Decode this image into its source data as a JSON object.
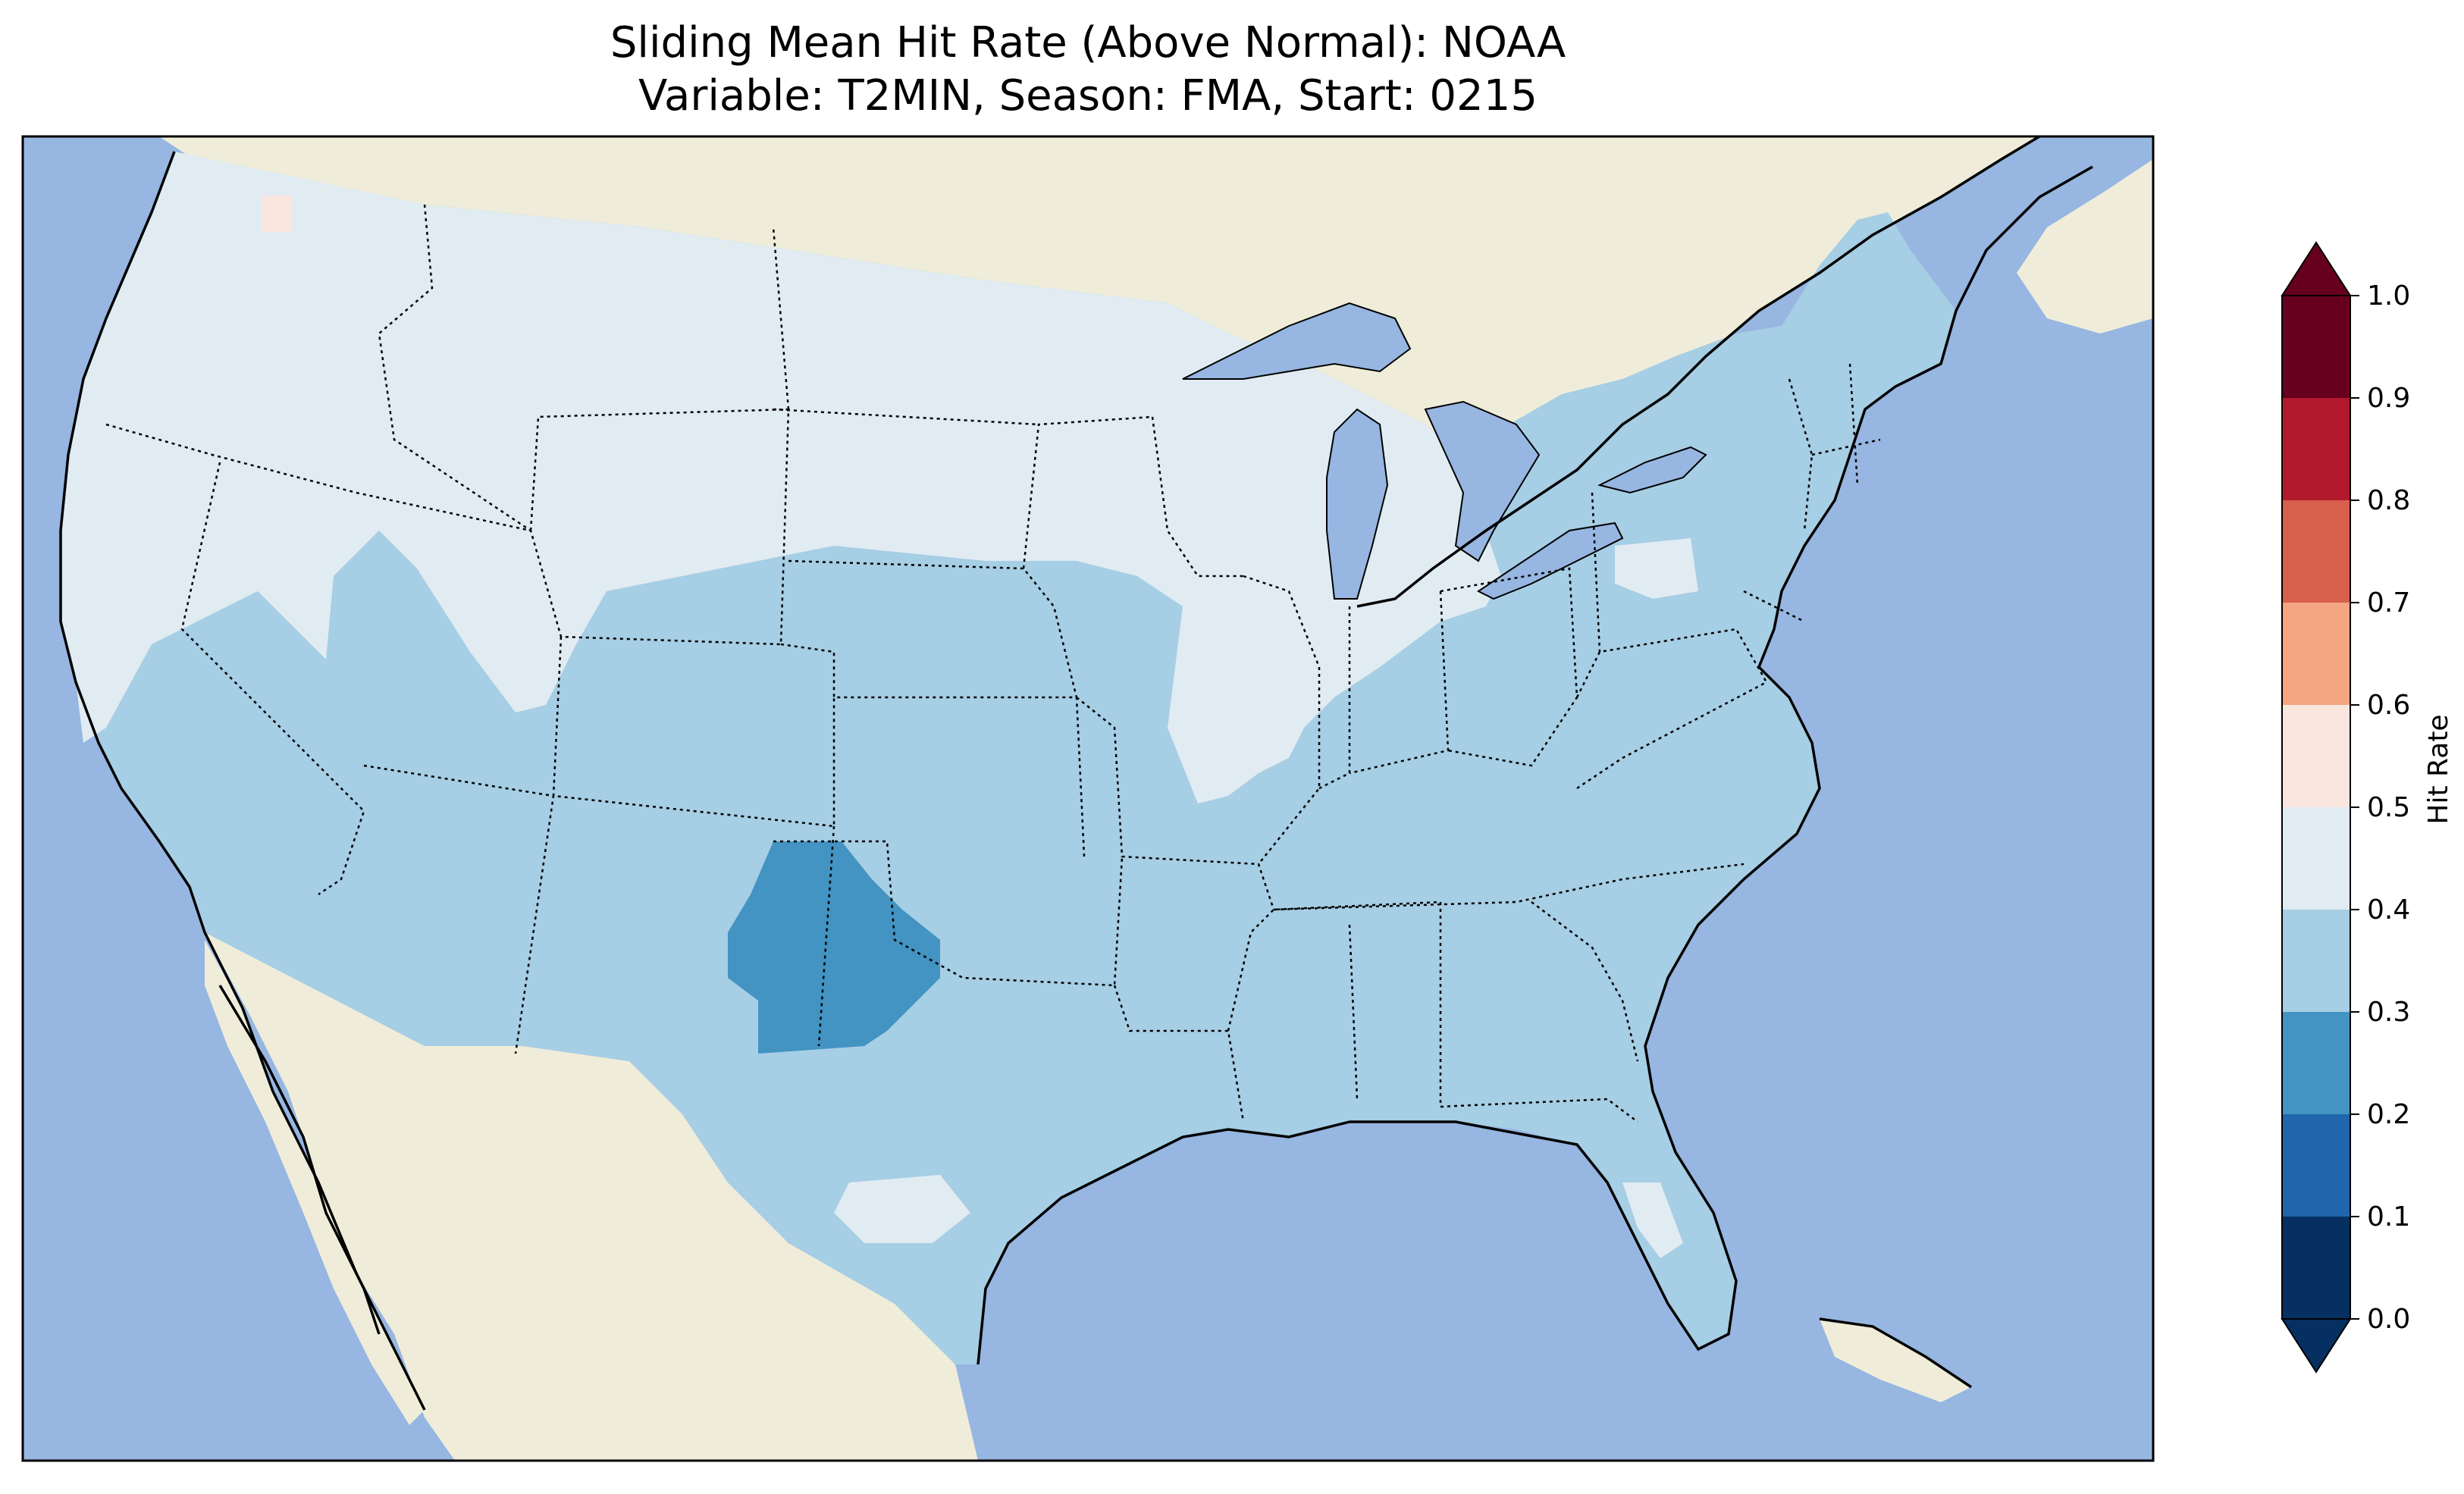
{
  "title": {
    "line1": "Sliding Mean Hit Rate (Above Normal): NOAA",
    "line2": "Variable: T2MIN, Season: FMA, Start: 0215"
  },
  "colors": {
    "ocean": "#97b6e1",
    "land": "#efedda",
    "outline": "#000000"
  },
  "colorbar": {
    "label": "Hit Rate",
    "ticks": [
      "0.0",
      "0.1",
      "0.2",
      "0.3",
      "0.4",
      "0.5",
      "0.6",
      "0.7",
      "0.8",
      "0.9",
      "1.0"
    ],
    "bins": [
      {
        "range": [
          0.0,
          0.1
        ],
        "color": "#053061"
      },
      {
        "range": [
          0.1,
          0.2
        ],
        "color": "#2166ac"
      },
      {
        "range": [
          0.2,
          0.3
        ],
        "color": "#4393c3"
      },
      {
        "range": [
          0.3,
          0.4
        ],
        "color": "#a6cee4"
      },
      {
        "range": [
          0.4,
          0.5
        ],
        "color": "#e1ebf2"
      },
      {
        "range": [
          0.5,
          0.6
        ],
        "color": "#f9e6df"
      },
      {
        "range": [
          0.6,
          0.7
        ],
        "color": "#f4a582"
      },
      {
        "range": [
          0.7,
          0.8
        ],
        "color": "#d6604d"
      },
      {
        "range": [
          0.8,
          0.9
        ],
        "color": "#b2182b"
      },
      {
        "range": [
          0.9,
          1.0
        ],
        "color": "#67001f"
      }
    ],
    "extend": "both"
  },
  "chart_data": {
    "type": "heatmap",
    "title": "Sliding Mean Hit Rate (Above Normal): NOAA",
    "subtitle": "Variable: T2MIN, Season: FMA, Start: 0215",
    "colorbar_label": "Hit Rate",
    "value_range": [
      0.0,
      1.0
    ],
    "levels": [
      0.0,
      0.1,
      0.2,
      0.3,
      0.4,
      0.5,
      0.6,
      0.7,
      0.8,
      0.9,
      1.0
    ],
    "regions": [
      {
        "name": "Northern tier (Pacific NW to Great Lakes)",
        "hit_rate_bin": [
          0.4,
          0.5
        ]
      },
      {
        "name": "Illinois / Indiana / Ohio",
        "hit_rate_bin": [
          0.4,
          0.5
        ]
      },
      {
        "name": "Central and Southern Plains, Southwest, South, East",
        "hit_rate_bin": [
          0.3,
          0.4
        ]
      },
      {
        "name": "Texas Panhandle / West Texas",
        "hit_rate_bin": [
          0.2,
          0.3
        ]
      },
      {
        "name": "South-central Texas",
        "hit_rate_bin": [
          0.4,
          0.5
        ]
      },
      {
        "name": "Northern Washington",
        "hit_rate_bin": [
          0.5,
          0.6
        ]
      },
      {
        "name": "Central Florida",
        "hit_rate_bin": [
          0.4,
          0.5
        ]
      }
    ]
  }
}
